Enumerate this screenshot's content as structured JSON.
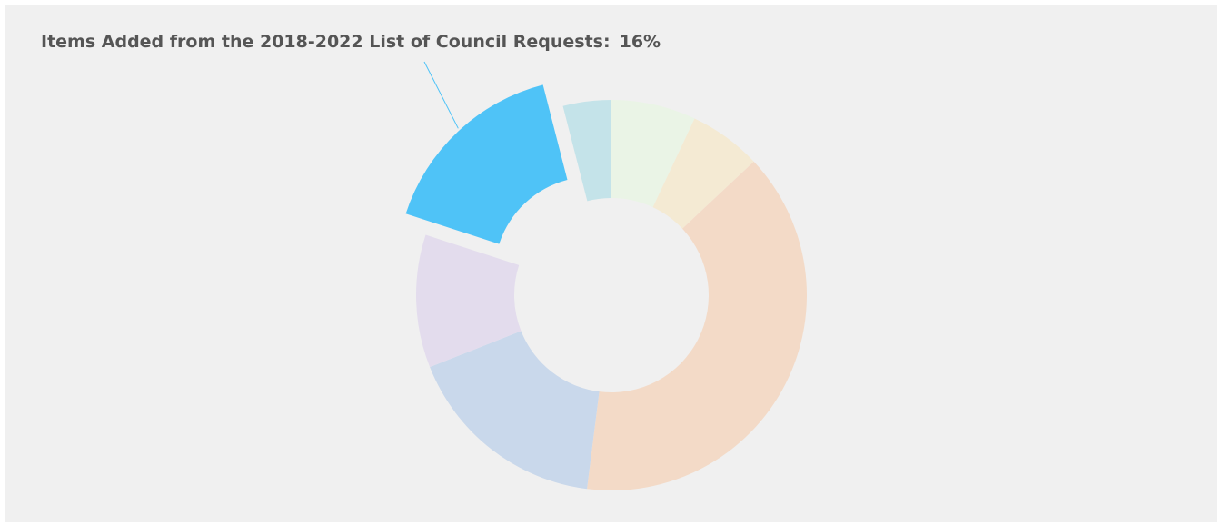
{
  "chart_data": {
    "type": "donut",
    "categories": [
      null,
      null,
      null,
      null,
      null,
      "Items Added from the 2018-2022 List of Council Requests:",
      null
    ],
    "values": [
      7,
      6,
      39,
      17,
      11,
      16,
      4
    ],
    "value_labels": [
      null,
      null,
      null,
      null,
      null,
      "16%",
      null
    ],
    "colors": [
      "#eaf4e6",
      "#f4ead3",
      "#f3dac7",
      "#c9d8eb",
      "#e3dced",
      "#4fc3f7",
      "#c4e3e9"
    ],
    "highlight": 5
  }
}
